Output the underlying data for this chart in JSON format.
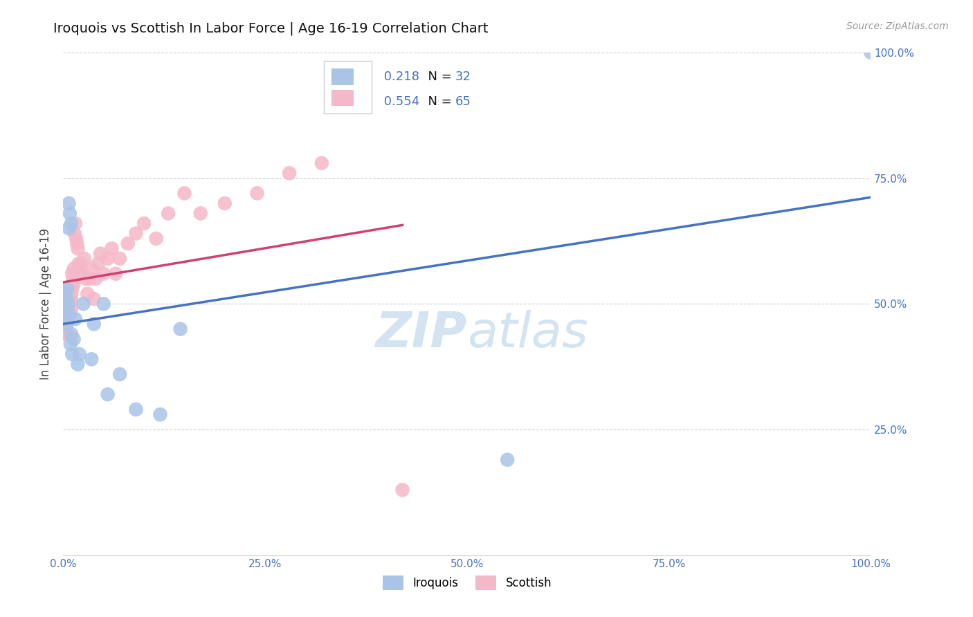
{
  "title": "Iroquois vs Scottish In Labor Force | Age 16-19 Correlation Chart",
  "source": "Source: ZipAtlas.com",
  "ylabel": "In Labor Force | Age 16-19",
  "xlim": [
    0.0,
    1.0
  ],
  "ylim": [
    0.0,
    1.0
  ],
  "xticks": [
    0.0,
    0.25,
    0.5,
    0.75,
    1.0
  ],
  "xtick_labels": [
    "0.0%",
    "25.0%",
    "50.0%",
    "75.0%",
    "100.0%"
  ],
  "ytick_labels": [
    "25.0%",
    "50.0%",
    "75.0%",
    "100.0%"
  ],
  "yticks": [
    0.25,
    0.5,
    0.75,
    1.0
  ],
  "iroquois_color": "#aac4e8",
  "scottish_color": "#f5b8c8",
  "iroquois_line_color": "#4472c4",
  "scottish_line_color": "#d04070",
  "watermark_color": "#cfe0f0",
  "background_color": "#ffffff",
  "grid_color": "#cccccc",
  "iroquois_x": [
    0.001,
    0.002,
    0.003,
    0.003,
    0.004,
    0.004,
    0.005,
    0.005,
    0.006,
    0.006,
    0.007,
    0.007,
    0.008,
    0.009,
    0.01,
    0.01,
    0.011,
    0.013,
    0.015,
    0.018,
    0.02,
    0.025,
    0.035,
    0.038,
    0.05,
    0.055,
    0.07,
    0.09,
    0.12,
    0.145,
    0.55,
    1.0
  ],
  "iroquois_y": [
    0.48,
    0.5,
    0.47,
    0.52,
    0.46,
    0.51,
    0.49,
    0.53,
    0.5,
    0.48,
    0.65,
    0.7,
    0.68,
    0.42,
    0.44,
    0.66,
    0.4,
    0.43,
    0.47,
    0.38,
    0.4,
    0.5,
    0.39,
    0.46,
    0.5,
    0.32,
    0.36,
    0.29,
    0.28,
    0.45,
    0.19,
    1.0
  ],
  "scottish_x": [
    0.001,
    0.002,
    0.002,
    0.003,
    0.003,
    0.003,
    0.004,
    0.004,
    0.004,
    0.005,
    0.005,
    0.005,
    0.006,
    0.006,
    0.006,
    0.007,
    0.007,
    0.007,
    0.008,
    0.008,
    0.009,
    0.009,
    0.01,
    0.01,
    0.01,
    0.011,
    0.011,
    0.012,
    0.013,
    0.013,
    0.014,
    0.015,
    0.016,
    0.017,
    0.018,
    0.019,
    0.02,
    0.022,
    0.024,
    0.026,
    0.028,
    0.03,
    0.032,
    0.035,
    0.038,
    0.04,
    0.043,
    0.046,
    0.05,
    0.055,
    0.06,
    0.065,
    0.07,
    0.08,
    0.09,
    0.1,
    0.115,
    0.13,
    0.15,
    0.17,
    0.2,
    0.24,
    0.28,
    0.32,
    0.42
  ],
  "scottish_y": [
    0.44,
    0.48,
    0.51,
    0.47,
    0.5,
    0.52,
    0.46,
    0.5,
    0.53,
    0.47,
    0.5,
    0.52,
    0.48,
    0.51,
    0.44,
    0.5,
    0.47,
    0.52,
    0.53,
    0.48,
    0.51,
    0.48,
    0.52,
    0.49,
    0.51,
    0.53,
    0.56,
    0.55,
    0.54,
    0.57,
    0.64,
    0.66,
    0.63,
    0.62,
    0.61,
    0.58,
    0.57,
    0.58,
    0.56,
    0.59,
    0.55,
    0.52,
    0.55,
    0.57,
    0.51,
    0.55,
    0.58,
    0.6,
    0.56,
    0.59,
    0.61,
    0.56,
    0.59,
    0.62,
    0.64,
    0.66,
    0.63,
    0.68,
    0.72,
    0.68,
    0.7,
    0.72,
    0.76,
    0.78,
    0.13
  ]
}
